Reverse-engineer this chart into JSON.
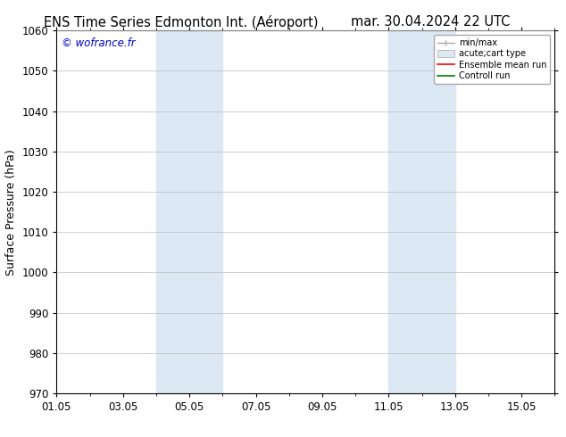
{
  "title_left": "ENS Time Series Edmonton Int. (Aéroport)",
  "title_right": "mar. 30.04.2024 22 UTC",
  "ylabel": "Surface Pressure (hPa)",
  "ylim": [
    970,
    1060
  ],
  "yticks": [
    970,
    980,
    990,
    1000,
    1010,
    1020,
    1030,
    1040,
    1050,
    1060
  ],
  "xlim": [
    0,
    15
  ],
  "xtick_labels": [
    "01.05",
    "03.05",
    "05.05",
    "07.05",
    "09.05",
    "11.05",
    "13.05",
    "15.05"
  ],
  "xtick_positions": [
    0,
    2,
    4,
    6,
    8,
    10,
    12,
    14
  ],
  "shade_regions": [
    {
      "x_start": 3.0,
      "x_end": 5.0
    },
    {
      "x_start": 10.0,
      "x_end": 12.0
    }
  ],
  "shade_color": "#dce9f5",
  "watermark": "© wofrance.fr",
  "watermark_color": "#0000cc",
  "legend_items": [
    {
      "label": "min/max",
      "color": "#aaaaaa",
      "style": "line_with_caps"
    },
    {
      "label": "acute;cart type",
      "color": "#ccddef",
      "style": "filled_rect"
    },
    {
      "label": "Ensemble mean run",
      "color": "#ff0000",
      "style": "line"
    },
    {
      "label": "Controll run",
      "color": "#008000",
      "style": "line"
    }
  ],
  "bg_color": "#ffffff",
  "plot_bg_color": "#ffffff",
  "grid_color": "#bbbbbb",
  "title_fontsize": 10.5,
  "axis_label_fontsize": 9,
  "tick_fontsize": 8.5
}
